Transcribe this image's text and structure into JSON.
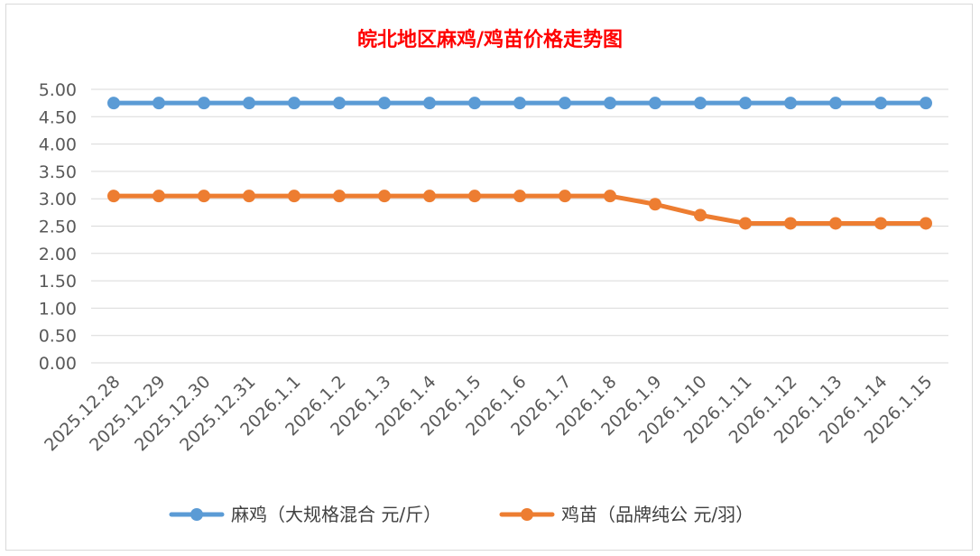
{
  "chart_data": {
    "type": "line",
    "title": "皖北地区麻鸡/鸡苗价格走势图",
    "xlabel": "",
    "ylabel": "",
    "categories": [
      "2025.12.28",
      "2025.12.29",
      "2025.12.30",
      "2025.12.31",
      "2026.1.1",
      "2026.1.2",
      "2026.1.3",
      "2026.1.4",
      "2026.1.5",
      "2026.1.6",
      "2026.1.7",
      "2026.1.8",
      "2026.1.9",
      "2026.1.10",
      "2026.1.11",
      "2026.1.12",
      "2026.1.13",
      "2026.1.14",
      "2026.1.15"
    ],
    "ylim": [
      0,
      5
    ],
    "yticks": [
      "0.00",
      "0.50",
      "1.00",
      "1.50",
      "2.00",
      "2.50",
      "3.00",
      "3.50",
      "4.00",
      "4.50",
      "5.00"
    ],
    "grid": true,
    "legend_position": "bottom",
    "series": [
      {
        "name": "麻鸡（大规格混合 元/斤）",
        "color": "#5b9bd5",
        "values": [
          4.75,
          4.75,
          4.75,
          4.75,
          4.75,
          4.75,
          4.75,
          4.75,
          4.75,
          4.75,
          4.75,
          4.75,
          4.75,
          4.75,
          4.75,
          4.75,
          4.75,
          4.75,
          4.75
        ]
      },
      {
        "name": "鸡苗（品牌纯公 元/羽）",
        "color": "#ed7d31",
        "values": [
          3.05,
          3.05,
          3.05,
          3.05,
          3.05,
          3.05,
          3.05,
          3.05,
          3.05,
          3.05,
          3.05,
          3.05,
          2.9,
          2.7,
          2.55,
          2.55,
          2.55,
          2.55,
          2.55
        ]
      }
    ]
  }
}
